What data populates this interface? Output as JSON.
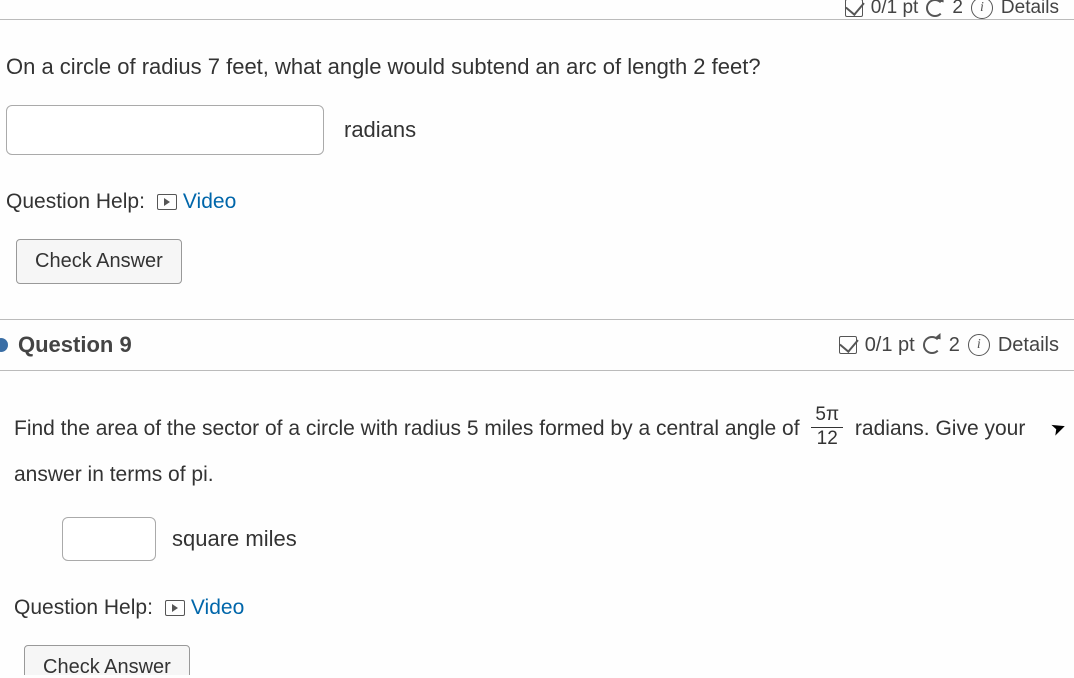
{
  "q8": {
    "header": {
      "score": "0/1 pt",
      "attempts": "2",
      "details_label": "Details"
    },
    "prompt": "On a circle of radius 7 feet, what angle would subtend an arc of length 2 feet?",
    "input_value": "",
    "unit": "radians",
    "help_label": "Question Help:",
    "video_label": "Video",
    "check_label": "Check Answer"
  },
  "q9": {
    "header": {
      "title": "Question 9",
      "score": "0/1 pt",
      "attempts": "2",
      "details_label": "Details"
    },
    "prompt_part1": "Find the area of the sector of a circle with radius 5 miles formed by a central angle of ",
    "fraction_num": "5π",
    "fraction_den": "12",
    "prompt_part2": " radians. Give your answer in terms of pi.",
    "input_value": "",
    "unit": "square miles",
    "help_label": "Question Help:",
    "video_label": "Video",
    "check_label": "Check Answer"
  },
  "colors": {
    "link": "#0066aa",
    "text": "#333333",
    "border": "#bbbbbb",
    "bullet": "#3a6ea5"
  }
}
